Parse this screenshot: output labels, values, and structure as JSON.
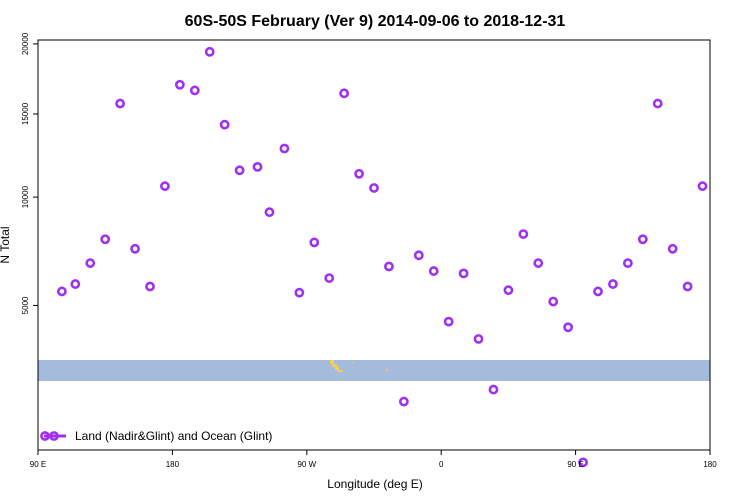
{
  "chart_data": {
    "type": "scatter",
    "title": "60S-50S February (Ver 9)   2014-09-06 to 2018-12-31",
    "xlabel": "Longitude (deg E)",
    "ylabel": "N Total",
    "x_tick_labels": [
      "90 E",
      "180",
      "90 W",
      "0",
      "90 E",
      "180"
    ],
    "x_tick_values": [
      90,
      180,
      270,
      360,
      450,
      540
    ],
    "xlim": [
      90,
      540
    ],
    "y_tick_labels": [
      "5000",
      "10000",
      "15000",
      "20000"
    ],
    "y_tick_values": [
      5000,
      10000,
      15000,
      20000
    ],
    "ylim": [
      1000,
      20300
    ],
    "grid": false,
    "legend_position": "bottom-left",
    "colors": {
      "marker": "#a030f0",
      "band": "#a4bbdb",
      "land": "#f2cd5c"
    },
    "band": {
      "lat_range": [
        -60,
        -50
      ]
    },
    "series": [
      {
        "name": "Land (Nadir&Glint) and Ocean (Glint)",
        "points": [
          [
            106,
            5550
          ],
          [
            115,
            5850
          ],
          [
            125,
            6750
          ],
          [
            135,
            7850
          ],
          [
            145,
            15700
          ],
          [
            155,
            7400
          ],
          [
            165,
            5750
          ],
          [
            175,
            10600
          ],
          [
            185,
            17000
          ],
          [
            195,
            16600
          ],
          [
            205,
            19400
          ],
          [
            215,
            14300
          ],
          [
            225,
            11500
          ],
          [
            237,
            11700
          ],
          [
            245,
            9200
          ],
          [
            255,
            12800
          ],
          [
            265,
            5500
          ],
          [
            275,
            7700
          ],
          [
            285,
            6100
          ],
          [
            295,
            16400
          ],
          [
            305,
            11300
          ],
          [
            315,
            10500
          ],
          [
            325,
            6600
          ],
          [
            335,
            2000
          ],
          [
            345,
            7100
          ],
          [
            355,
            6400
          ],
          [
            365,
            4400
          ],
          [
            375,
            6300
          ],
          [
            385,
            3800
          ],
          [
            395,
            2300
          ],
          [
            405,
            5600
          ],
          [
            415,
            8100
          ],
          [
            425,
            6750
          ],
          [
            435,
            5150
          ],
          [
            445,
            4200
          ],
          [
            455,
            800
          ],
          [
            465,
            5550
          ],
          [
            475,
            5850
          ],
          [
            485,
            6750
          ],
          [
            495,
            7850
          ],
          [
            505,
            15700
          ],
          [
            515,
            7400
          ],
          [
            525,
            5750
          ],
          [
            535,
            10600
          ]
        ]
      }
    ]
  }
}
